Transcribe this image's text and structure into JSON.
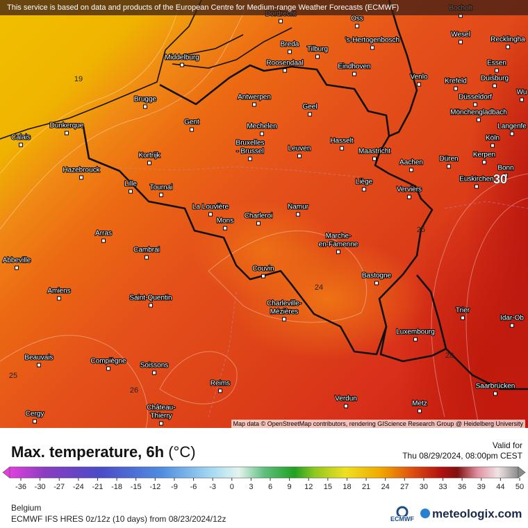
{
  "header": {
    "notice": "This service is based on data and products of the European Centre for Medium-range Weather Forecasts (ECMWF)"
  },
  "map": {
    "attribution": "Map data © OpenStreetMap contributors, rendering GIScience Research Group @ Heidelberg University",
    "cities": [
      "Dordrecht",
      "Oss",
      "Bocholt",
      "Breda",
      "Tilburg",
      "'s-Hertogenbosch",
      "Wesel",
      "Recklingha",
      "Middelburg",
      "Roosendaal",
      "Eindhoven",
      "Venlo",
      "Essen",
      "Krefeld",
      "Duisburg",
      "Brugge",
      "Antwerpen",
      "Geel",
      "Düsseldorf",
      "Wu",
      "Mönchengladbach",
      "Gent",
      "Mechelen",
      "Hasselt",
      "Langenfe",
      "Dunkerque",
      "Calais",
      [
        "Bruxelles",
        "- Brussel"
      ],
      "Leuven",
      "Maastricht",
      "Köln",
      "Kortrijk",
      "Düren",
      "Kerpen",
      "Aachen",
      "Hazebrouck",
      "Bonn",
      "Euskirchen",
      "Lille",
      "Tournai",
      "Liège",
      "Verviers",
      "La Louvière",
      "Namur",
      "Mons",
      "Charleroi",
      "Arras",
      [
        "Marche-",
        "en-Famenne"
      ],
      "Cambrai",
      "Abbeville",
      "Couvin",
      "Bastogne",
      "Amiens",
      "Saint-Quentin",
      [
        "Charleville-",
        "Mézières"
      ],
      "Trier",
      "Idar-Ob",
      "Luxembourg",
      "Beauvais",
      "Compiègne",
      "Soissons",
      "Reims",
      "Saarbrücken",
      "Verdun",
      "Metz",
      [
        "Château-",
        "Thierry"
      ],
      "Cergy"
    ],
    "contour_labels": [
      19,
      30,
      25,
      24,
      25,
      26,
      28
    ]
  },
  "legend": {
    "title": "Max. temperature, 6h",
    "unit": "(°C)",
    "valid_label": "Valid for",
    "valid_time": "Thu 08/29/2024, 08:00pm CEST",
    "ticks": [
      -36,
      -30,
      -27,
      -24,
      -21,
      -18,
      -15,
      -12,
      -9,
      -6,
      -3,
      0,
      3,
      6,
      9,
      12,
      15,
      18,
      21,
      24,
      27,
      30,
      33,
      36,
      39,
      44,
      50
    ]
  },
  "footer": {
    "region": "Belgium",
    "model": "ECMWF IFS HRES 0z/12z (10 days) from 08/23/2024/12z",
    "ecmwf": "ECMWF",
    "brand": "meteologix.com"
  }
}
